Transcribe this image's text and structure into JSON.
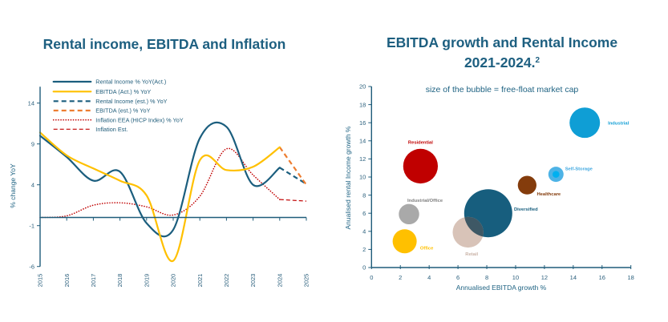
{
  "chart_data": [
    {
      "type": "line",
      "title": "Rental income, EBITDA and Inflation",
      "xlabel": "",
      "ylabel": "% change YoY",
      "x_categories": [
        2015,
        2016,
        2017,
        2018,
        2019,
        2020,
        2021,
        2022,
        2023,
        2024,
        2025
      ],
      "ylim": [
        -6,
        16
      ],
      "yticks": [
        -6,
        -1,
        4,
        9,
        14
      ],
      "grid": false,
      "legend_position": "top-left",
      "series": [
        {
          "name": "Rental Income % YoY(Act.)",
          "color": "#1b5e7e",
          "style": "solid",
          "x": [
            2015,
            2016,
            2017,
            2018,
            2019,
            2020,
            2021,
            2022,
            2023,
            2024
          ],
          "values": [
            10.0,
            7.4,
            4.5,
            5.6,
            -0.7,
            -1.5,
            9.7,
            11.1,
            4.0,
            6.1
          ]
        },
        {
          "name": "EBITDA (Act.) % YoY",
          "color": "#ffc000",
          "style": "solid",
          "x": [
            2015,
            2016,
            2017,
            2018,
            2019,
            2020,
            2021,
            2022,
            2023,
            2024
          ],
          "values": [
            10.4,
            7.6,
            6.0,
            4.5,
            2.7,
            -5.3,
            7.0,
            5.8,
            6.2,
            8.6
          ]
        },
        {
          "name": "Rental Income (est.) % YoY",
          "color": "#1b5e7e",
          "style": "dashed",
          "x": [
            2024,
            2025
          ],
          "values": [
            6.1,
            4.1
          ]
        },
        {
          "name": "EBITDA (est.) % YoY",
          "color": "#ed7d31",
          "style": "dashed",
          "x": [
            2024,
            2025
          ],
          "values": [
            8.6,
            4.0
          ]
        },
        {
          "name": "Inflation EEA (HICP Index) % YoY",
          "color": "#c00000",
          "style": "dotted",
          "x": [
            2015,
            2016,
            2017,
            2018,
            2019,
            2020,
            2021,
            2022,
            2023,
            2024
          ],
          "values": [
            0.0,
            0.2,
            1.5,
            1.8,
            1.3,
            0.3,
            2.6,
            8.4,
            5.2,
            2.2
          ]
        },
        {
          "name": "Inflation Est.",
          "color": "#c00000",
          "style": "dashed-thin",
          "x": [
            2024,
            2025
          ],
          "values": [
            2.2,
            2.0
          ]
        }
      ]
    },
    {
      "type": "scatter",
      "subtype": "bubble",
      "title_lines": [
        "EBITDA growth and Rental Income",
        "2021-2024."
      ],
      "title_superscript": "2",
      "subtitle": "size of the bubble = free-float market cap",
      "xlabel": "Annualised EBITDA growth %",
      "ylabel": "Anualised rental Income growth %",
      "xlim": [
        0,
        18
      ],
      "ylim": [
        0,
        20
      ],
      "xticks": [
        0,
        2,
        4,
        6,
        8,
        10,
        12,
        14,
        16,
        18
      ],
      "yticks": [
        0,
        2,
        4,
        6,
        8,
        10,
        12,
        14,
        16,
        18,
        20
      ],
      "grid": false,
      "size_note": "relative bubble size, Diversified = 100",
      "points": [
        {
          "label": "Residential",
          "x": 3.4,
          "y": 11.2,
          "size": 52,
          "color": "#c00000",
          "label_color": "#c00000"
        },
        {
          "label": "Industrial/Office",
          "x": 2.6,
          "y": 5.9,
          "size": 18,
          "color": "#a9a9a9",
          "label_color": "#7f7f7f"
        },
        {
          "label": "Office",
          "x": 2.3,
          "y": 2.9,
          "size": 25,
          "color": "#ffc000",
          "label_color": "#ffc000"
        },
        {
          "label": "Diversified",
          "x": 8.1,
          "y": 6.0,
          "size": 100,
          "color": "#175e7e",
          "label_color": "#175e7e"
        },
        {
          "label": "Retail",
          "x": 6.7,
          "y": 3.9,
          "size": 41,
          "color": "#d8c3b8",
          "label_color": "#c9b2a6"
        },
        {
          "label": "Healthcare",
          "x": 10.8,
          "y": 9.1,
          "size": 15,
          "color": "#843c0c",
          "label_color": "#843c0c"
        },
        {
          "label": "Self-Storage",
          "x": 12.8,
          "y": 10.3,
          "size": 10,
          "color": "#4db3e6",
          "accent_color": "#00b0f0",
          "label_color": "#40a8e0"
        },
        {
          "label": "Industrial",
          "x": 14.8,
          "y": 16.0,
          "size": 40,
          "color": "#0f9ed5",
          "label_color": "#0f9ed5"
        }
      ],
      "overlap_color": "#3e5865"
    }
  ]
}
